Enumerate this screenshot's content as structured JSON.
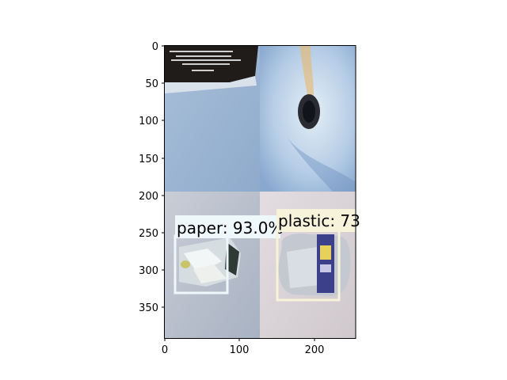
{
  "figure": {
    "x_ticks": [
      "0",
      "100",
      "200"
    ],
    "y_ticks": [
      "0",
      "50",
      "100",
      "150",
      "200",
      "250",
      "300",
      "350"
    ]
  },
  "tiles": [
    {
      "name": "tile-top-left",
      "bg": "#9fb6d4",
      "desc_colors": {
        "dark": "#1f1c1a",
        "light": "#a9bfdc"
      }
    },
    {
      "name": "tile-top-right",
      "bg": "#b7cfe6"
    },
    {
      "name": "tile-bottom-left",
      "bg": "#bcc3cc"
    },
    {
      "name": "tile-bottom-right",
      "bg": "#d9d3d6"
    }
  ],
  "detections": [
    {
      "label": "paper: 93.0%",
      "box_color": "#eef7fa",
      "label_bg": "#eef7fa"
    },
    {
      "label": "plastic: 73",
      "box_color": "#f6f3da",
      "label_bg": "#f6f3da"
    }
  ]
}
